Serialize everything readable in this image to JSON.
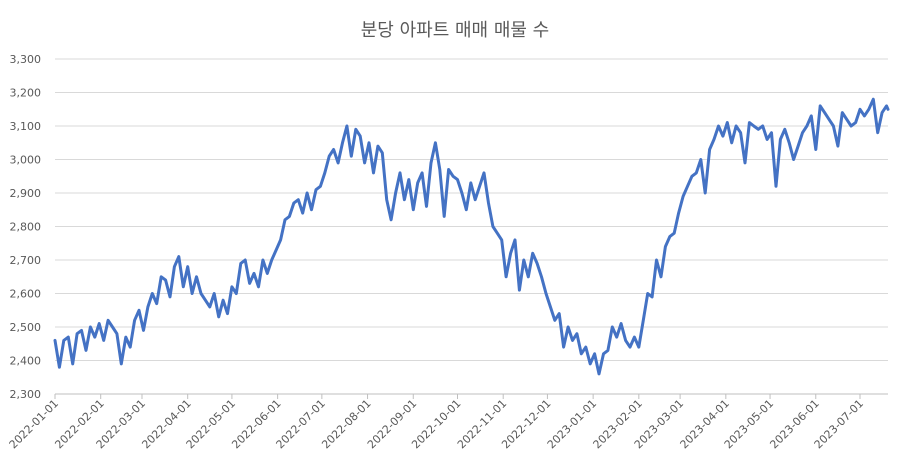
{
  "chart_data": {
    "type": "line",
    "title": "분당 아파트 매매 매물 수",
    "xlabel": "",
    "ylabel": "",
    "ylim": [
      2300,
      3300
    ],
    "y_ticks": [
      2300,
      2400,
      2500,
      2600,
      2700,
      2800,
      2900,
      3000,
      3100,
      3200,
      3300
    ],
    "y_tick_labels": [
      "2,300",
      "2,400",
      "2,500",
      "2,600",
      "2,700",
      "2,800",
      "2,900",
      "3,000",
      "3,100",
      "3,200",
      "3,300"
    ],
    "x_range": [
      "2022-01-01",
      "2023-07-20"
    ],
    "x_ticks": [
      "2022-01-01",
      "2022-02-01",
      "2022-03-01",
      "2022-04-01",
      "2022-05-01",
      "2022-06-01",
      "2022-07-01",
      "2022-08-01",
      "2022-09-01",
      "2022-10-01",
      "2022-11-01",
      "2022-12-01",
      "2023-01-01",
      "2023-02-01",
      "2023-03-01",
      "2023-04-01",
      "2023-05-01",
      "2023-06-01",
      "2023-07-01"
    ],
    "grid": "horizontal",
    "color": "#4472c4",
    "series": [
      {
        "points": [
          [
            "2022-01-01",
            2460
          ],
          [
            "2022-01-04",
            2380
          ],
          [
            "2022-01-07",
            2460
          ],
          [
            "2022-01-10",
            2470
          ],
          [
            "2022-01-13",
            2390
          ],
          [
            "2022-01-16",
            2480
          ],
          [
            "2022-01-19",
            2490
          ],
          [
            "2022-01-22",
            2430
          ],
          [
            "2022-01-25",
            2500
          ],
          [
            "2022-01-28",
            2470
          ],
          [
            "2022-01-31",
            2510
          ],
          [
            "2022-02-03",
            2460
          ],
          [
            "2022-02-06",
            2520
          ],
          [
            "2022-02-09",
            2500
          ],
          [
            "2022-02-12",
            2480
          ],
          [
            "2022-02-15",
            2390
          ],
          [
            "2022-02-18",
            2470
          ],
          [
            "2022-02-21",
            2440
          ],
          [
            "2022-02-24",
            2520
          ],
          [
            "2022-02-27",
            2550
          ],
          [
            "2022-03-02",
            2490
          ],
          [
            "2022-03-05",
            2560
          ],
          [
            "2022-03-08",
            2600
          ],
          [
            "2022-03-11",
            2570
          ],
          [
            "2022-03-14",
            2650
          ],
          [
            "2022-03-17",
            2640
          ],
          [
            "2022-03-20",
            2590
          ],
          [
            "2022-03-23",
            2680
          ],
          [
            "2022-03-26",
            2710
          ],
          [
            "2022-03-29",
            2620
          ],
          [
            "2022-04-01",
            2680
          ],
          [
            "2022-04-04",
            2600
          ],
          [
            "2022-04-07",
            2650
          ],
          [
            "2022-04-10",
            2600
          ],
          [
            "2022-04-13",
            2580
          ],
          [
            "2022-04-16",
            2560
          ],
          [
            "2022-04-19",
            2600
          ],
          [
            "2022-04-22",
            2530
          ],
          [
            "2022-04-25",
            2580
          ],
          [
            "2022-04-28",
            2540
          ],
          [
            "2022-05-01",
            2620
          ],
          [
            "2022-05-04",
            2600
          ],
          [
            "2022-05-07",
            2690
          ],
          [
            "2022-05-10",
            2700
          ],
          [
            "2022-05-13",
            2630
          ],
          [
            "2022-05-16",
            2660
          ],
          [
            "2022-05-19",
            2620
          ],
          [
            "2022-05-22",
            2700
          ],
          [
            "2022-05-25",
            2660
          ],
          [
            "2022-05-28",
            2700
          ],
          [
            "2022-05-31",
            2730
          ],
          [
            "2022-06-03",
            2760
          ],
          [
            "2022-06-06",
            2820
          ],
          [
            "2022-06-09",
            2830
          ],
          [
            "2022-06-12",
            2870
          ],
          [
            "2022-06-15",
            2880
          ],
          [
            "2022-06-18",
            2840
          ],
          [
            "2022-06-21",
            2900
          ],
          [
            "2022-06-24",
            2850
          ],
          [
            "2022-06-27",
            2910
          ],
          [
            "2022-06-30",
            2920
          ],
          [
            "2022-07-03",
            2960
          ],
          [
            "2022-07-06",
            3010
          ],
          [
            "2022-07-09",
            3030
          ],
          [
            "2022-07-12",
            2990
          ],
          [
            "2022-07-15",
            3050
          ],
          [
            "2022-07-18",
            3100
          ],
          [
            "2022-07-21",
            3010
          ],
          [
            "2022-07-24",
            3090
          ],
          [
            "2022-07-27",
            3070
          ],
          [
            "2022-07-30",
            2990
          ],
          [
            "2022-08-02",
            3050
          ],
          [
            "2022-08-05",
            2960
          ],
          [
            "2022-08-08",
            3040
          ],
          [
            "2022-08-11",
            3020
          ],
          [
            "2022-08-14",
            2880
          ],
          [
            "2022-08-17",
            2820
          ],
          [
            "2022-08-20",
            2900
          ],
          [
            "2022-08-23",
            2960
          ],
          [
            "2022-08-26",
            2880
          ],
          [
            "2022-08-29",
            2940
          ],
          [
            "2022-09-01",
            2850
          ],
          [
            "2022-09-04",
            2930
          ],
          [
            "2022-09-07",
            2960
          ],
          [
            "2022-09-10",
            2860
          ],
          [
            "2022-09-13",
            2990
          ],
          [
            "2022-09-16",
            3050
          ],
          [
            "2022-09-19",
            2970
          ],
          [
            "2022-09-22",
            2830
          ],
          [
            "2022-09-25",
            2970
          ],
          [
            "2022-09-28",
            2950
          ],
          [
            "2022-10-01",
            2940
          ],
          [
            "2022-10-04",
            2900
          ],
          [
            "2022-10-07",
            2850
          ],
          [
            "2022-10-10",
            2930
          ],
          [
            "2022-10-13",
            2880
          ],
          [
            "2022-10-16",
            2920
          ],
          [
            "2022-10-19",
            2960
          ],
          [
            "2022-10-22",
            2870
          ],
          [
            "2022-10-25",
            2800
          ],
          [
            "2022-10-28",
            2780
          ],
          [
            "2022-10-31",
            2760
          ],
          [
            "2022-11-03",
            2650
          ],
          [
            "2022-11-06",
            2720
          ],
          [
            "2022-11-09",
            2760
          ],
          [
            "2022-11-12",
            2610
          ],
          [
            "2022-11-15",
            2700
          ],
          [
            "2022-11-18",
            2650
          ],
          [
            "2022-11-21",
            2720
          ],
          [
            "2022-11-24",
            2690
          ],
          [
            "2022-11-27",
            2650
          ],
          [
            "2022-11-30",
            2600
          ],
          [
            "2022-12-03",
            2560
          ],
          [
            "2022-12-06",
            2520
          ],
          [
            "2022-12-09",
            2540
          ],
          [
            "2022-12-12",
            2440
          ],
          [
            "2022-12-15",
            2500
          ],
          [
            "2022-12-18",
            2460
          ],
          [
            "2022-12-21",
            2480
          ],
          [
            "2022-12-24",
            2420
          ],
          [
            "2022-12-27",
            2440
          ],
          [
            "2022-12-30",
            2390
          ],
          [
            "2023-01-02",
            2420
          ],
          [
            "2023-01-05",
            2360
          ],
          [
            "2023-01-08",
            2420
          ],
          [
            "2023-01-11",
            2430
          ],
          [
            "2023-01-14",
            2500
          ],
          [
            "2023-01-17",
            2470
          ],
          [
            "2023-01-20",
            2510
          ],
          [
            "2023-01-23",
            2460
          ],
          [
            "2023-01-26",
            2440
          ],
          [
            "2023-01-29",
            2470
          ],
          [
            "2023-02-01",
            2440
          ],
          [
            "2023-02-04",
            2520
          ],
          [
            "2023-02-07",
            2600
          ],
          [
            "2023-02-10",
            2590
          ],
          [
            "2023-02-13",
            2700
          ],
          [
            "2023-02-16",
            2650
          ],
          [
            "2023-02-19",
            2740
          ],
          [
            "2023-02-22",
            2770
          ],
          [
            "2023-02-25",
            2780
          ],
          [
            "2023-02-28",
            2840
          ],
          [
            "2023-03-03",
            2890
          ],
          [
            "2023-03-06",
            2920
          ],
          [
            "2023-03-09",
            2950
          ],
          [
            "2023-03-12",
            2960
          ],
          [
            "2023-03-15",
            3000
          ],
          [
            "2023-03-18",
            2900
          ],
          [
            "2023-03-21",
            3030
          ],
          [
            "2023-03-24",
            3060
          ],
          [
            "2023-03-27",
            3100
          ],
          [
            "2023-03-30",
            3070
          ],
          [
            "2023-04-02",
            3110
          ],
          [
            "2023-04-05",
            3050
          ],
          [
            "2023-04-08",
            3100
          ],
          [
            "2023-04-11",
            3080
          ],
          [
            "2023-04-14",
            2990
          ],
          [
            "2023-04-17",
            3110
          ],
          [
            "2023-04-20",
            3100
          ],
          [
            "2023-04-23",
            3090
          ],
          [
            "2023-04-26",
            3100
          ],
          [
            "2023-04-29",
            3060
          ],
          [
            "2023-05-02",
            3080
          ],
          [
            "2023-05-05",
            2920
          ],
          [
            "2023-05-08",
            3060
          ],
          [
            "2023-05-11",
            3090
          ],
          [
            "2023-05-14",
            3050
          ],
          [
            "2023-05-17",
            3000
          ],
          [
            "2023-05-20",
            3040
          ],
          [
            "2023-05-23",
            3080
          ],
          [
            "2023-05-26",
            3100
          ],
          [
            "2023-05-29",
            3130
          ],
          [
            "2023-06-01",
            3030
          ],
          [
            "2023-06-04",
            3160
          ],
          [
            "2023-06-07",
            3140
          ],
          [
            "2023-06-10",
            3120
          ],
          [
            "2023-06-13",
            3100
          ],
          [
            "2023-06-16",
            3040
          ],
          [
            "2023-06-19",
            3140
          ],
          [
            "2023-06-22",
            3120
          ],
          [
            "2023-06-25",
            3100
          ],
          [
            "2023-06-28",
            3110
          ],
          [
            "2023-07-01",
            3150
          ],
          [
            "2023-07-04",
            3130
          ],
          [
            "2023-07-07",
            3150
          ],
          [
            "2023-07-10",
            3180
          ],
          [
            "2023-07-13",
            3080
          ],
          [
            "2023-07-16",
            3140
          ],
          [
            "2023-07-19",
            3160
          ],
          [
            "2023-07-20",
            3150
          ]
        ]
      }
    ]
  }
}
